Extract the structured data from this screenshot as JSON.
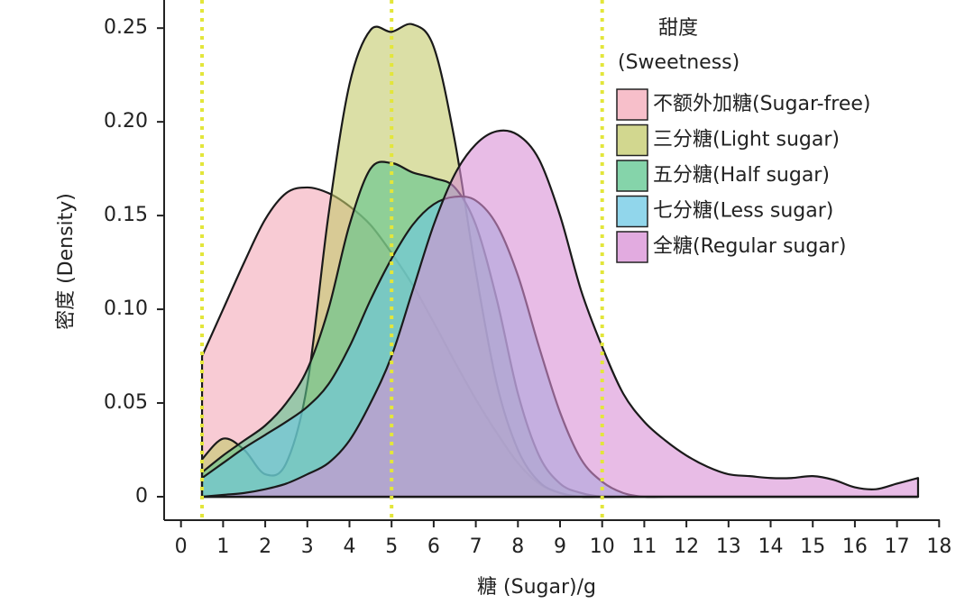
{
  "chart_data": {
    "type": "density",
    "x_label": "糖 (Sugar)/g",
    "y_label": "密度 (Density)",
    "legend_title": "甜度",
    "legend_subtitle": "(Sweetness)",
    "x": [
      0.5,
      1,
      1.5,
      2,
      2.5,
      3,
      3.5,
      4,
      4.5,
      5,
      5.5,
      6,
      6.5,
      7,
      7.5,
      8,
      8.5,
      9,
      9.5,
      10,
      10.5,
      11,
      11.5,
      12,
      12.5,
      13,
      13.5,
      14,
      14.5,
      15,
      15.5,
      16,
      16.5,
      17,
      17.5
    ],
    "series": [
      {
        "name": "不额外加糖(Sugar-free)",
        "color": "#f4a9b8",
        "values": [
          0.075,
          0.1,
          0.125,
          0.148,
          0.162,
          0.165,
          0.162,
          0.155,
          0.145,
          0.13,
          0.113,
          0.093,
          0.072,
          0.052,
          0.034,
          0.018,
          0.007,
          0.002,
          0,
          0,
          0,
          0,
          0,
          0,
          0,
          0,
          0,
          0,
          0,
          0,
          0,
          0,
          0,
          0,
          0
        ]
      },
      {
        "name": "三分糖(Light sugar)",
        "color": "#c3c96a",
        "values": [
          0.02,
          0.031,
          0.025,
          0.012,
          0.018,
          0.06,
          0.15,
          0.22,
          0.249,
          0.248,
          0.252,
          0.24,
          0.19,
          0.12,
          0.06,
          0.025,
          0.008,
          0.002,
          0,
          0,
          0,
          0,
          0,
          0,
          0,
          0,
          0,
          0,
          0,
          0,
          0,
          0,
          0,
          0,
          0
        ]
      },
      {
        "name": "五分糖(Half sugar)",
        "color": "#5cc58e",
        "values": [
          0.013,
          0.022,
          0.03,
          0.038,
          0.05,
          0.068,
          0.1,
          0.145,
          0.175,
          0.178,
          0.173,
          0.17,
          0.165,
          0.145,
          0.105,
          0.055,
          0.022,
          0.007,
          0.002,
          0,
          0,
          0,
          0,
          0,
          0,
          0,
          0,
          0,
          0,
          0,
          0,
          0,
          0,
          0,
          0
        ]
      },
      {
        "name": "七分糖(Less sugar)",
        "color": "#6cc8e4",
        "values": [
          0.01,
          0.018,
          0.026,
          0.033,
          0.04,
          0.048,
          0.06,
          0.08,
          0.105,
          0.127,
          0.145,
          0.156,
          0.16,
          0.158,
          0.145,
          0.118,
          0.08,
          0.045,
          0.02,
          0.008,
          0.002,
          0,
          0,
          0,
          0,
          0,
          0,
          0,
          0,
          0,
          0,
          0,
          0,
          0,
          0
        ]
      },
      {
        "name": "全糖(Regular sugar)",
        "color": "#d88fd6",
        "values": [
          0,
          0.001,
          0.002,
          0.004,
          0.007,
          0.012,
          0.018,
          0.03,
          0.05,
          0.075,
          0.11,
          0.145,
          0.172,
          0.188,
          0.195,
          0.193,
          0.18,
          0.15,
          0.11,
          0.08,
          0.055,
          0.04,
          0.03,
          0.022,
          0.016,
          0.012,
          0.011,
          0.01,
          0.01,
          0.011,
          0.009,
          0.005,
          0.004,
          0.007,
          0.01
        ]
      }
    ],
    "vlines": [
      0.5,
      5,
      10
    ],
    "vline_color": "#e3e63a",
    "xlim": [
      -0.4,
      18.1
    ],
    "ylim": [
      -0.0125,
      0.265
    ],
    "xticks": [
      0,
      1,
      2,
      3,
      4,
      5,
      6,
      7,
      8,
      9,
      10,
      11,
      12,
      13,
      14,
      15,
      16,
      17,
      18
    ],
    "yticks": [
      0,
      0.05,
      {
        "value": 0.1,
        "label": "0.10"
      },
      0.15,
      {
        "value": 0.2,
        "label": "0.20"
      },
      0.25
    ]
  }
}
